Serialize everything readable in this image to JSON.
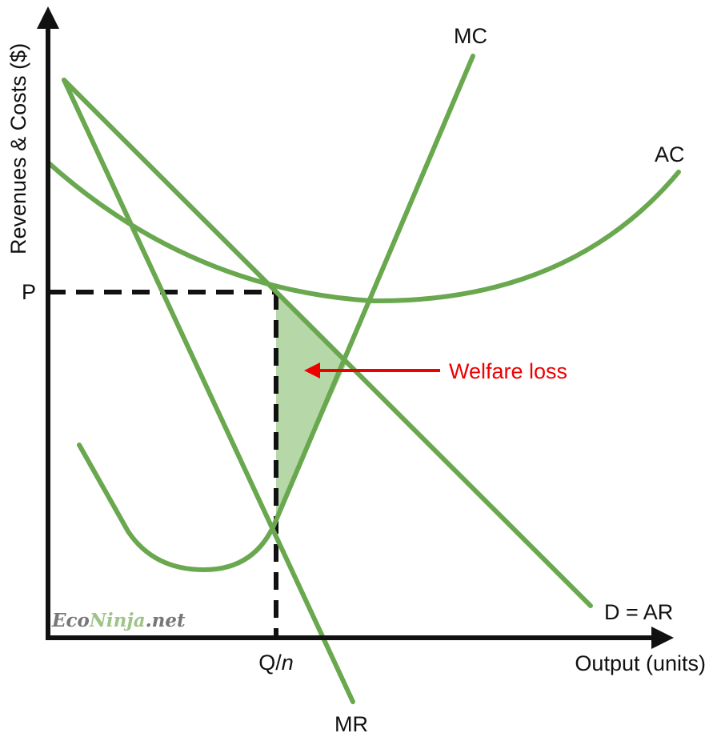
{
  "axes": {
    "y_label": "Revenues & Costs ($)",
    "x_label": "Output (units)",
    "price_label": "P",
    "quantity_label": "Q/",
    "quantity_label_italic": "n"
  },
  "curves": {
    "mc_label": "MC",
    "ac_label": "AC",
    "demand_label": "D = AR",
    "mr_label": "MR"
  },
  "annotation": {
    "welfare_label": "Welfare loss"
  },
  "watermark": {
    "part1": "Eco",
    "part2": "Ninja",
    "part3": ".net"
  },
  "colors": {
    "curve": "#6aa84f",
    "welfare_fill": "#b6d7a8",
    "axis": "#111111",
    "annotation": "#ee0000",
    "watermark_dark": "#777777",
    "watermark_light": "#9ec489"
  }
}
